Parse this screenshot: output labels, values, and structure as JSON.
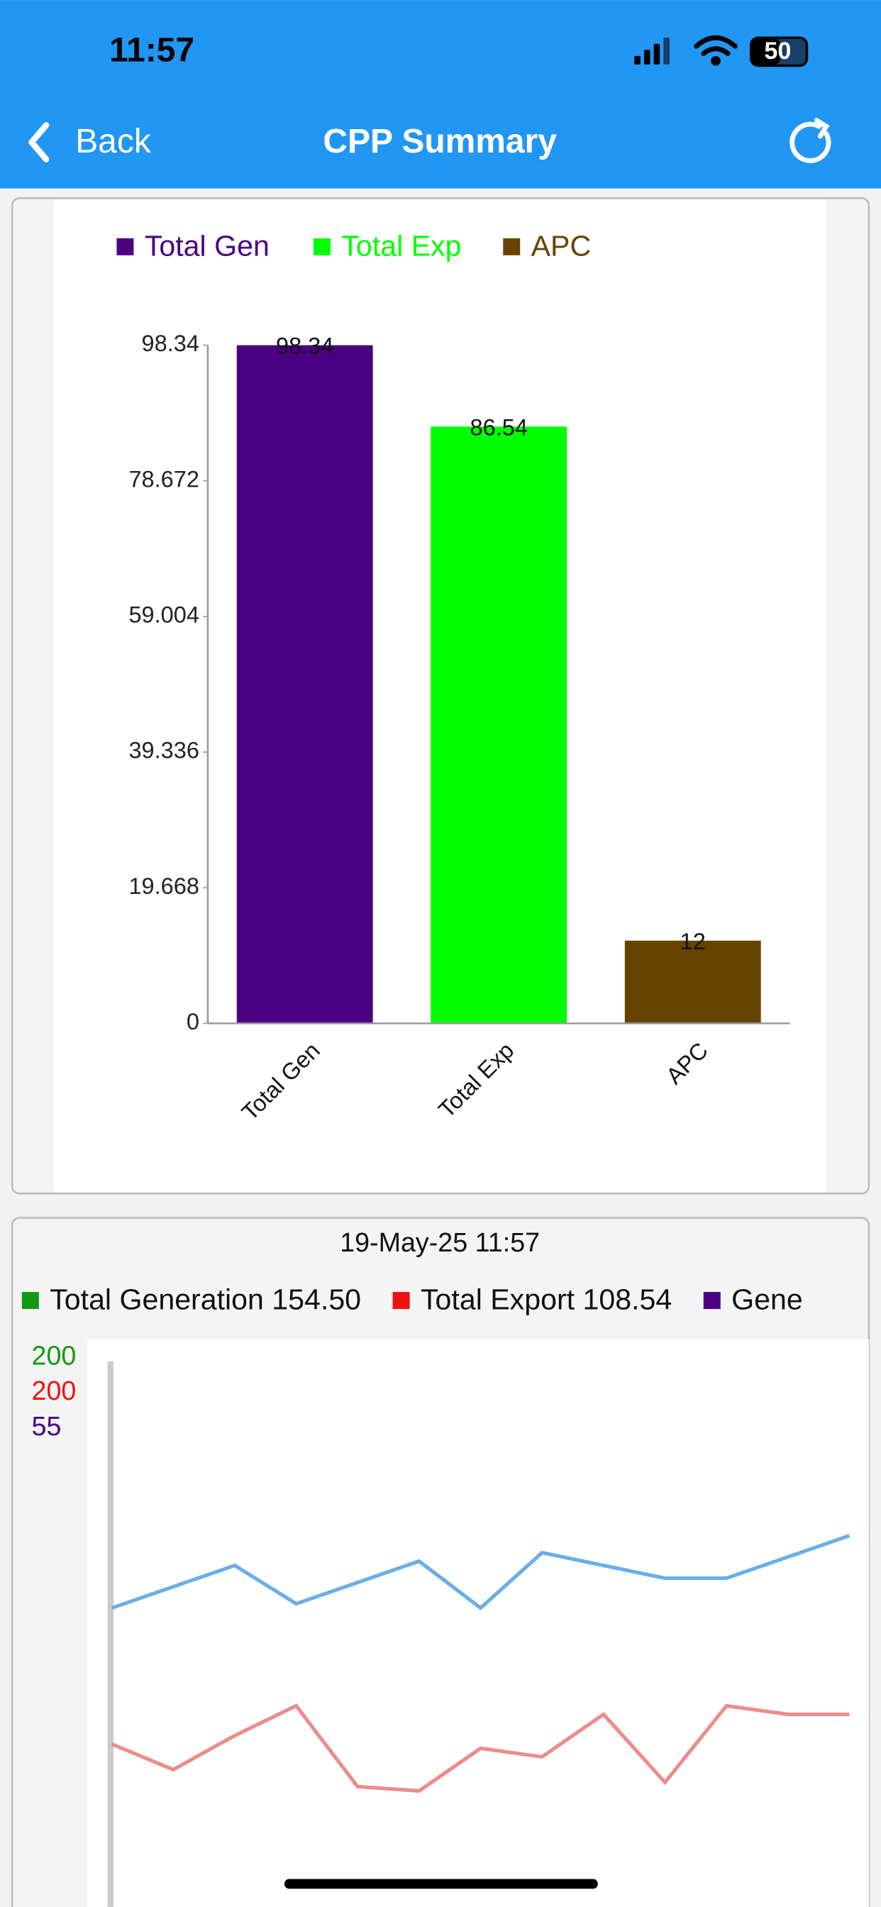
{
  "status_bar": {
    "time": "11:57",
    "battery": "50"
  },
  "nav": {
    "back": "Back",
    "title": "CPP Summary"
  },
  "chart_data": [
    {
      "type": "bar",
      "categories": [
        "Total Gen",
        "Total Exp",
        "APC"
      ],
      "values": [
        98.34,
        86.54,
        12
      ],
      "colors": [
        "#4b0082",
        "#00ff00",
        "#664400"
      ],
      "ylim": [
        0,
        98.34
      ],
      "yticks": [
        0,
        19.668,
        39.336,
        59.004,
        78.672,
        98.34
      ],
      "legend": "top-left"
    },
    {
      "type": "line",
      "title": "19-May-25 11:57",
      "categories": [
        null,
        null,
        null,
        null,
        null,
        null,
        null,
        null,
        null,
        null,
        null,
        null,
        null
      ],
      "series": [
        {
          "name": "Total Generation 154.50",
          "color": "#129a12",
          "line_color": "#6aaee8",
          "ylim": [
            0,
            200
          ],
          "values": [
            142,
            147,
            152,
            143,
            148,
            153,
            142,
            155,
            152,
            149,
            149,
            154,
            159
          ]
        },
        {
          "name": "Total Export 108.54",
          "color": "#ee1111",
          "line_color": "#ec8c8c",
          "ylim": [
            0,
            200
          ],
          "values": [
            110,
            104,
            112,
            119,
            100,
            99,
            109,
            107,
            117,
            101,
            119,
            117,
            117
          ]
        },
        {
          "name": "Gene",
          "color": "#4b0082",
          "ylim": [
            0,
            55
          ]
        }
      ]
    }
  ]
}
